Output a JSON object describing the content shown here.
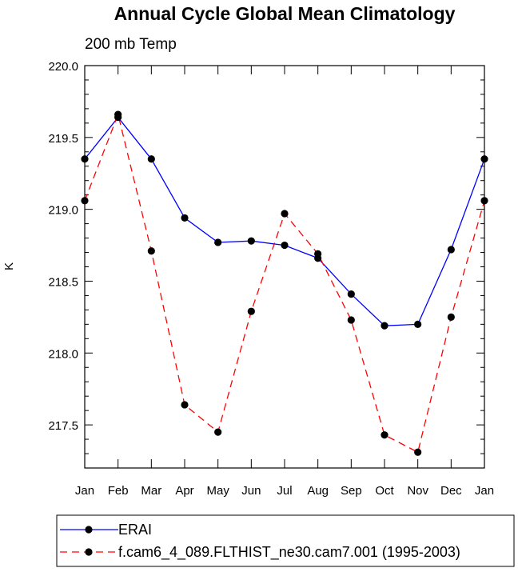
{
  "chart_data": {
    "type": "line",
    "title": "Annual Cycle Global Mean Climatology",
    "subtitle": "200 mb Temp",
    "ylabel": "K",
    "xlabel": "",
    "categories": [
      "Jan",
      "Feb",
      "Mar",
      "Apr",
      "May",
      "Jun",
      "Jul",
      "Aug",
      "Sep",
      "Oct",
      "Nov",
      "Dec",
      "Jan"
    ],
    "ylim": [
      217.2,
      220.0
    ],
    "yticks": [
      "217.5",
      "218.0",
      "218.5",
      "219.0",
      "219.5",
      "220.0"
    ],
    "series": [
      {
        "name": "ERAI",
        "color": "#0000ff",
        "dash": "solid",
        "marker": "filled-circle",
        "values": [
          219.35,
          219.64,
          219.35,
          218.94,
          218.77,
          218.78,
          218.75,
          218.66,
          218.41,
          218.19,
          218.2,
          218.72,
          219.35
        ]
      },
      {
        "name": "f.cam6_4_089.FLTHIST_ne30.cam7.001 (1995-2003)",
        "color": "#ff0000",
        "dash": "dashed",
        "marker": "filled-circle",
        "values": [
          219.06,
          219.66,
          218.71,
          217.64,
          217.45,
          218.29,
          218.97,
          218.69,
          218.23,
          217.43,
          217.31,
          218.25,
          219.06
        ]
      }
    ],
    "legend_position": "bottom"
  }
}
